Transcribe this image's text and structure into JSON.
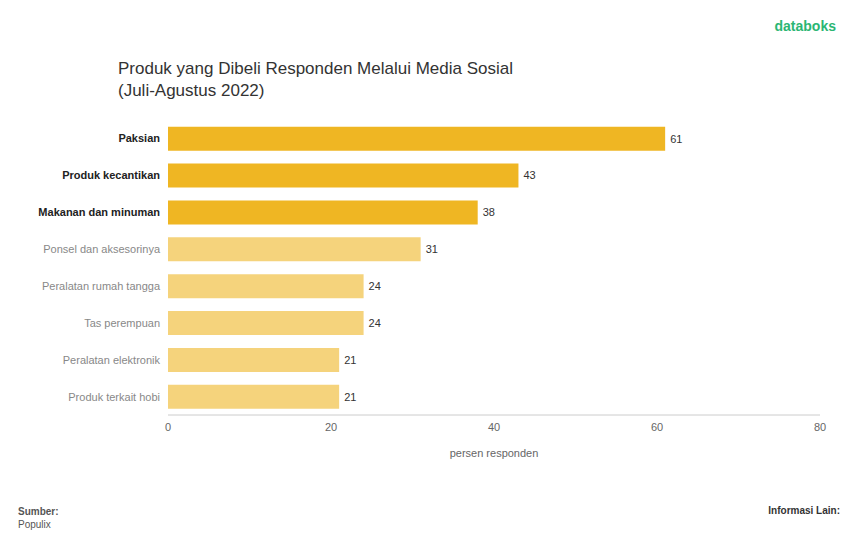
{
  "chart_data": {
    "type": "bar",
    "orientation": "horizontal",
    "title": "Produk yang Dibeli Responden Melalui Media Sosial",
    "subtitle": "(Juli-Agustus 2022)",
    "brand": "databoks",
    "categories": [
      "Paksian",
      "Produk kecantikan",
      "Makanan dan minuman",
      "Ponsel dan aksesorinya",
      "Peralatan rumah tangga",
      "Tas perempuan",
      "Peralatan elektronik",
      "Produk terkait hobi"
    ],
    "values": [
      61,
      43,
      38,
      31,
      24,
      24,
      21,
      21
    ],
    "colors": [
      "#efb623",
      "#efb623",
      "#efb623",
      "#f5d37c",
      "#f5d37c",
      "#f5d37c",
      "#f5d37c",
      "#f5d37c"
    ],
    "x_label": "persen responden",
    "xlim": [
      0,
      80
    ],
    "xticks": [
      0,
      20,
      40,
      60,
      80
    ],
    "grid": false,
    "data_labels": true,
    "source_label": "Sumber:",
    "source": "Populix",
    "other_info_label": "Informasi Lain:"
  }
}
